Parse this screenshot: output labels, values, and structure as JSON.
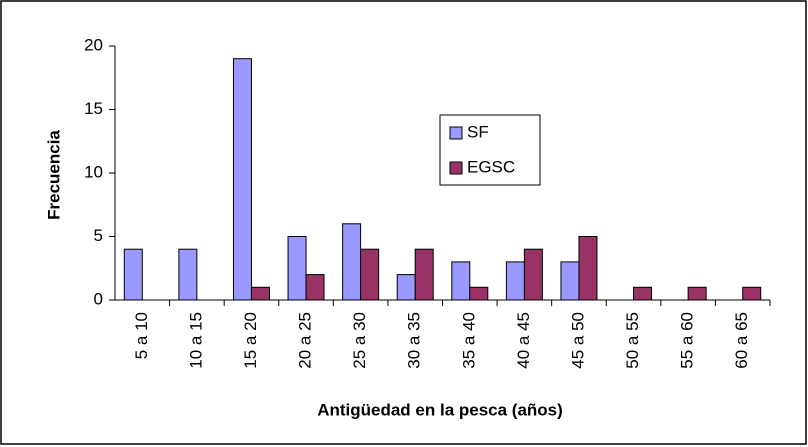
{
  "chart_data": {
    "type": "bar",
    "x_label": "Antigüedad en la pesca (años)",
    "y_label": "Frecuencia",
    "categories": [
      "5 a 10",
      "10 a 15",
      "15 a 20",
      "20 a 25",
      "25 a 30",
      "30 a 35",
      "35 a 40",
      "40 a 45",
      "45 a 50",
      "50 a 55",
      "55 a 60",
      "60 a 65"
    ],
    "series": [
      {
        "name": "SF",
        "color": "#9999ff",
        "values": [
          4,
          4,
          19,
          5,
          6,
          2,
          3,
          3,
          3,
          0,
          0,
          0
        ]
      },
      {
        "name": "EGSC",
        "color": "#993366",
        "values": [
          0,
          0,
          1,
          2,
          4,
          4,
          1,
          4,
          5,
          1,
          1,
          1
        ]
      }
    ],
    "ylim": [
      0,
      20
    ],
    "yticks": [
      0,
      5,
      10,
      15,
      20
    ],
    "grid": false,
    "legend": "center"
  }
}
